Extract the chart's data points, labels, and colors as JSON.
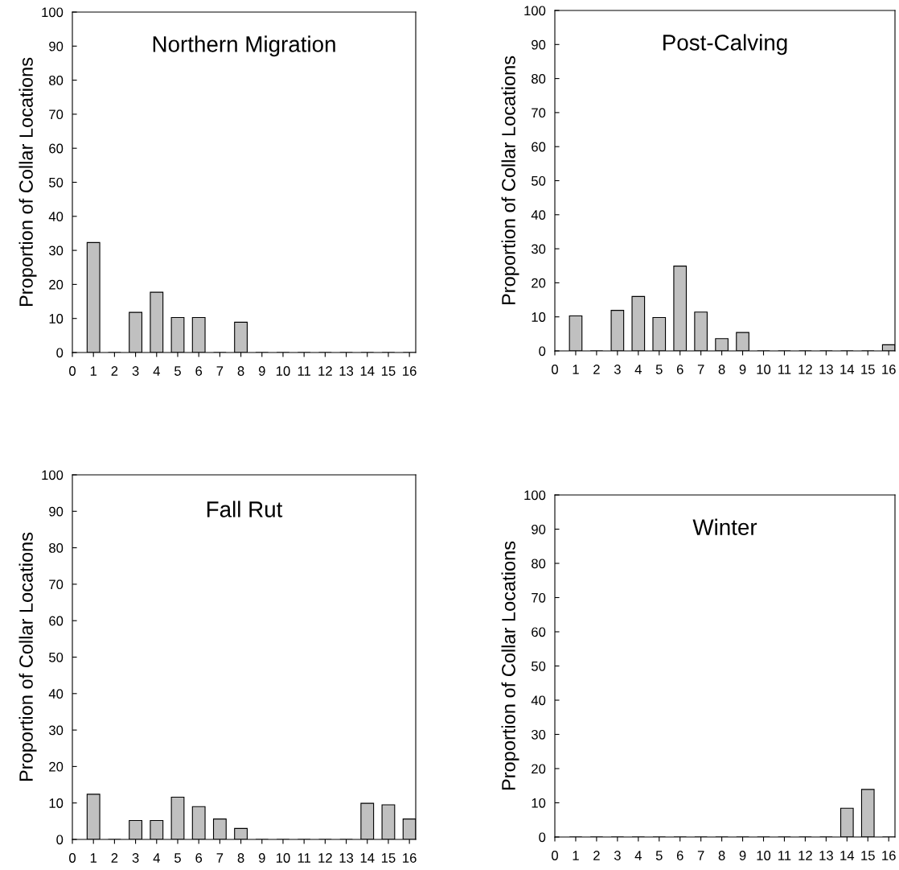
{
  "chart_data": [
    {
      "type": "bar",
      "title": "Northern Migration",
      "ylabel": "Proportion of Collar Locations",
      "x": [
        1,
        2,
        3,
        4,
        5,
        6,
        7,
        8,
        9,
        10,
        11,
        12,
        13,
        14,
        15,
        16
      ],
      "values": [
        32.3,
        0,
        11.8,
        17.7,
        10.3,
        10.3,
        0,
        8.9,
        0,
        0,
        0,
        0,
        0,
        0,
        0,
        0
      ],
      "color": "#c0c0c0",
      "xlim": [
        0,
        16.3
      ],
      "xticks": [
        0,
        1,
        2,
        3,
        4,
        5,
        6,
        7,
        8,
        9,
        10,
        11,
        12,
        13,
        14,
        15,
        16
      ],
      "ylim": [
        0,
        100
      ],
      "yticks": [
        0,
        10,
        20,
        30,
        40,
        50,
        60,
        70,
        80,
        90,
        100
      ],
      "grid": false
    },
    {
      "type": "bar",
      "title": "Post-Calving",
      "ylabel": "Proportion of Collar Locations",
      "x": [
        1,
        2,
        3,
        4,
        5,
        6,
        7,
        8,
        9,
        10,
        11,
        12,
        13,
        14,
        15,
        16
      ],
      "values": [
        10.3,
        0,
        11.9,
        16,
        9.8,
        24.9,
        11.4,
        3.6,
        5.4,
        0,
        0,
        0,
        0,
        0,
        0,
        1.8
      ],
      "color": "#c0c0c0",
      "xlim": [
        0,
        16.3
      ],
      "xticks": [
        0,
        1,
        2,
        3,
        4,
        5,
        6,
        7,
        8,
        9,
        10,
        11,
        12,
        13,
        14,
        15,
        16
      ],
      "ylim": [
        0,
        100
      ],
      "yticks": [
        0,
        10,
        20,
        30,
        40,
        50,
        60,
        70,
        80,
        90,
        100
      ],
      "grid": false
    },
    {
      "type": "bar",
      "title": "Fall Rut",
      "ylabel": "Proportion of Collar Locations",
      "x": [
        1,
        2,
        3,
        4,
        5,
        6,
        7,
        8,
        9,
        10,
        11,
        12,
        13,
        14,
        15,
        16
      ],
      "values": [
        12.4,
        0,
        5.2,
        5.2,
        11.6,
        9,
        5.6,
        3,
        0,
        0,
        0,
        0,
        0,
        9.9,
        9.5,
        5.6
      ],
      "color": "#c0c0c0",
      "xlim": [
        0,
        16.3
      ],
      "xticks": [
        0,
        1,
        2,
        3,
        4,
        5,
        6,
        7,
        8,
        9,
        10,
        11,
        12,
        13,
        14,
        15,
        16
      ],
      "ylim": [
        0,
        100
      ],
      "yticks": [
        0,
        10,
        20,
        30,
        40,
        50,
        60,
        70,
        80,
        90,
        100
      ],
      "grid": false
    },
    {
      "type": "bar",
      "title": "Winter",
      "ylabel": "Proportion of Collar Locations",
      "x": [
        1,
        2,
        3,
        4,
        5,
        6,
        7,
        8,
        9,
        10,
        11,
        12,
        13,
        14,
        15,
        16
      ],
      "values": [
        0,
        0,
        0,
        0,
        0,
        0,
        0,
        0,
        0,
        0,
        0,
        0,
        0,
        8.4,
        13.9,
        0
      ],
      "color": "#c0c0c0",
      "xlim": [
        0,
        16.3
      ],
      "xticks": [
        0,
        1,
        2,
        3,
        4,
        5,
        6,
        7,
        8,
        9,
        10,
        11,
        12,
        13,
        14,
        15,
        16
      ],
      "ylim": [
        0,
        100
      ],
      "yticks": [
        0,
        10,
        20,
        30,
        40,
        50,
        60,
        70,
        80,
        90,
        100
      ],
      "grid": false
    }
  ]
}
